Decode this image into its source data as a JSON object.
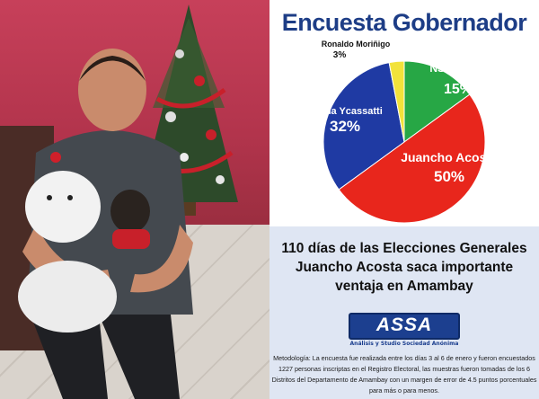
{
  "chart_data": {
    "type": "pie",
    "title": "Encuesta Gobernador",
    "slices": [
      {
        "name": "Juancho Acosta",
        "value": 50,
        "label": "50%",
        "color": "#e8261c"
      },
      {
        "name": "Zulma Ycassatti",
        "value": 32,
        "label": "32%",
        "color": "#1f3aa3"
      },
      {
        "name": "Ronaldo Moriñigo",
        "value": 3,
        "label": "3%",
        "color": "#f2e23a"
      },
      {
        "name": "NS/NR",
        "value": 15,
        "label": "15%",
        "color": "#27a745"
      }
    ]
  },
  "headline": {
    "line1": "110 días de las Elecciones Generales",
    "line2": "Juancho Acosta saca importante",
    "line3": "ventaja en Amambay"
  },
  "logo": {
    "name": "ASSA",
    "tagline": "Análisis y Studio Sociedad Anónima"
  },
  "methodology": "Metodología: La encuesta fue realizada entre los días 3 al 6 de enero y fueron encuestados 1227 personas inscriptas en el Registro Electoral, las muestras fueron tomadas de los 6  Distritos del Departamento de Amambay con un margen de error de 4.5 puntos porcentuales para más o para menos.",
  "colors": {
    "title": "#1d3d86",
    "bottom_panel": "#dfe6f3"
  }
}
